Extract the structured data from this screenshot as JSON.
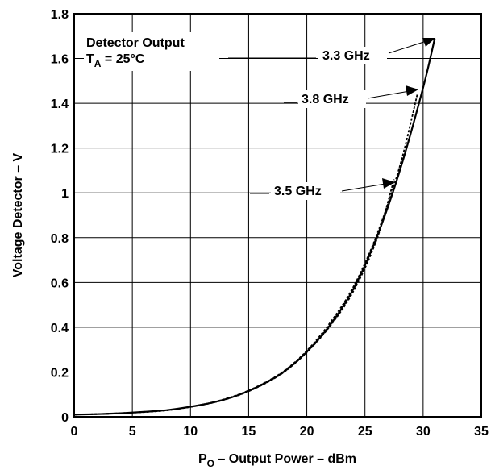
{
  "chart_data": {
    "type": "line",
    "xlabel_main": "P",
    "xlabel_sub": "O",
    "xlabel_rest": " – Output Power – dBm",
    "ylabel": "Voltage Detector – V",
    "xlim": [
      0,
      35
    ],
    "ylim": [
      0,
      1.8
    ],
    "xticks": [
      "0",
      "5",
      "10",
      "15",
      "20",
      "25",
      "30",
      "35"
    ],
    "yticks": [
      "0",
      "0.2",
      "0.4",
      "0.6",
      "0.8",
      "1",
      "1.2",
      "1.4",
      "1.6",
      "1.8"
    ],
    "grid": true,
    "annotation": {
      "line1": "Detector Output",
      "line2_main": "T",
      "line2_sub": "A",
      "line2_rest": " = 25°C"
    },
    "series": [
      {
        "name": "3.3 GHz",
        "x": [
          0,
          2,
          4,
          6,
          8,
          10,
          12,
          14,
          16,
          18,
          20,
          22,
          24,
          26,
          28,
          30,
          31
        ],
        "y": [
          0.01,
          0.012,
          0.016,
          0.022,
          0.03,
          0.045,
          0.065,
          0.095,
          0.14,
          0.2,
          0.29,
          0.41,
          0.57,
          0.8,
          1.1,
          1.47,
          1.69
        ]
      },
      {
        "name": "3.8 GHz",
        "x": [
          0,
          2,
          4,
          6,
          8,
          10,
          12,
          14,
          16,
          18,
          20,
          22,
          24,
          26,
          28,
          29.5
        ],
        "y": [
          0.01,
          0.012,
          0.016,
          0.022,
          0.03,
          0.045,
          0.066,
          0.097,
          0.142,
          0.203,
          0.295,
          0.42,
          0.58,
          0.81,
          1.12,
          1.44
        ]
      },
      {
        "name": "3.5 GHz",
        "x": [
          0,
          2,
          4,
          6,
          8,
          10,
          12,
          14,
          16,
          18,
          20,
          22,
          24,
          26,
          27.5
        ],
        "y": [
          0.01,
          0.012,
          0.016,
          0.021,
          0.029,
          0.044,
          0.064,
          0.094,
          0.138,
          0.198,
          0.288,
          0.405,
          0.56,
          0.79,
          1.06
        ]
      }
    ]
  }
}
